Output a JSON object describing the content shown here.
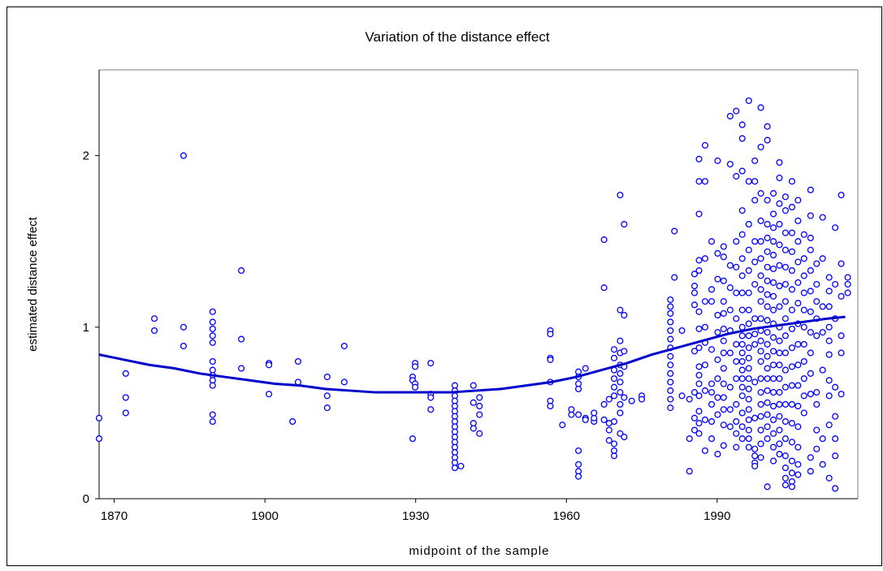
{
  "chart_data": {
    "type": "scatter",
    "title": "Variation of the distance effect",
    "x_label": "midpoint of the sample",
    "y_label": "estimated distance effect",
    "color": "#0000ff",
    "xlim": [
      1867,
      2018
    ],
    "xticks": [
      1870,
      1900,
      1930,
      1960,
      1990
    ],
    "ylim": [
      0,
      2.5
    ],
    "yticks": [
      0,
      1,
      2
    ],
    "x": [
      1867,
      1867,
      1872.3,
      1872.3,
      1872.3,
      1878,
      1878,
      1883.8,
      1883.8,
      1883.8,
      1889.6,
      1889.6,
      1889.6,
      1889.6,
      1889.6,
      1889.6,
      1889.6,
      1889.6,
      1889.6,
      1889.6,
      1889.6,
      1889.6,
      1895.3,
      1895.3,
      1895.3,
      1900.8,
      1900.8,
      1900.8,
      1905.5,
      1906.6,
      1906.6,
      1912.4,
      1912.4,
      1912.4,
      1915.8,
      1915.8,
      1929.4,
      1929.4,
      1929.4,
      1929.9,
      1929.9,
      1929.9,
      1929.9,
      1933,
      1933,
      1933,
      1933,
      1937.8,
      1937.8,
      1937.8,
      1937.8,
      1937.8,
      1937.8,
      1937.8,
      1937.8,
      1937.8,
      1937.8,
      1937.8,
      1937.8,
      1937.8,
      1937.8,
      1937.8,
      1937.8,
      1937.8,
      1939,
      1941.5,
      1941.5,
      1941.5,
      1941.5,
      1942.7,
      1942.7,
      1942.7,
      1942.7,
      1956.8,
      1956.8,
      1956.8,
      1956.8,
      1956.8,
      1956.8,
      1956.8,
      1959.2,
      1961,
      1961,
      1962.4,
      1962.4,
      1962.4,
      1962.4,
      1962.4,
      1962.4,
      1962.4,
      1962.4,
      1962.4,
      1963.8,
      1963.8,
      1963.8,
      1965.5,
      1965.5,
      1965.5,
      1967.5,
      1967.5,
      1967.5,
      1967.5,
      1968.5,
      1968.5,
      1968.5,
      1968.5,
      1969.5,
      1969.5,
      1969.5,
      1969.5,
      1969.5,
      1969.5,
      1969.5,
      1969.5,
      1969.5,
      1969.5,
      1970.7,
      1970.7,
      1970.7,
      1970.7,
      1970.7,
      1970.7,
      1970.7,
      1970.7,
      1970.7,
      1970.7,
      1970.7,
      1971.5,
      1971.5,
      1971.5,
      1971.5,
      1971.5,
      1971.5,
      1973,
      1975,
      1975,
      1980.7,
      1980.7,
      1980.7,
      1980.7,
      1980.7,
      1980.7,
      1980.7,
      1980.7,
      1980.7,
      1980.7,
      1980.7,
      1980.7,
      1980.7,
      1980.7,
      1981.5,
      1981.5,
      1983,
      1983,
      1984.5,
      1984.5,
      1984.5,
      1985.5,
      1985.5,
      1985.5,
      1985.5,
      1985.5,
      1985.5,
      1985.5,
      1985.5,
      1986.4,
      1986.4,
      1986.4,
      1986.4,
      1986.4,
      1986.4,
      1986.4,
      1986.4,
      1986.4,
      1986.4,
      1986.4,
      1986.4,
      1986.4,
      1986.4,
      1986.4,
      1987.6,
      1987.6,
      1987.6,
      1987.6,
      1987.6,
      1987.6,
      1987.6,
      1987.6,
      1987.6,
      1987.6,
      1988.9,
      1988.9,
      1988.9,
      1988.9,
      1988.9,
      1988.9,
      1988.9,
      1988.9,
      1988.9,
      1990.1,
      1990.1,
      1990.1,
      1990.1,
      1990.1,
      1990.1,
      1990.1,
      1990.1,
      1990.1,
      1990.1,
      1991.3,
      1991.3,
      1991.3,
      1991.3,
      1991.3,
      1991.3,
      1991.3,
      1991.3,
      1991.3,
      1991.3,
      1991.3,
      1991.3,
      1991.3,
      1991.3,
      1992.6,
      1992.6,
      1992.6,
      1992.6,
      1992.6,
      1992.6,
      1992.6,
      1992.6,
      1992.6,
      1992.6,
      1993.8,
      1993.8,
      1993.8,
      1993.8,
      1993.8,
      1993.8,
      1993.8,
      1993.8,
      1993.8,
      1993.8,
      1993.8,
      1993.8,
      1993.8,
      1995,
      1995,
      1995,
      1995,
      1995,
      1995,
      1995,
      1995,
      1995,
      1995,
      1995,
      1995,
      1995,
      1995,
      1995,
      1995,
      1995,
      1995,
      1995,
      1995,
      1995,
      1996.3,
      1996.3,
      1996.3,
      1996.3,
      1996.3,
      1996.3,
      1996.3,
      1996.3,
      1996.3,
      1996.3,
      1996.3,
      1996.3,
      1996.3,
      1996.3,
      1996.3,
      1996.3,
      1996.3,
      1996.3,
      1996.3,
      1996.3,
      1997.5,
      1997.5,
      1997.5,
      1997.5,
      1997.5,
      1997.5,
      1997.5,
      1997.5,
      1997.5,
      1997.5,
      1997.5,
      1997.5,
      1997.5,
      1997.5,
      1997.5,
      1998.7,
      1998.7,
      1998.7,
      1998.7,
      1998.7,
      1998.7,
      1998.7,
      1998.7,
      1998.7,
      1998.7,
      1998.7,
      1998.7,
      1998.7,
      1998.7,
      1998.7,
      1998.7,
      1998.7,
      1998.7,
      1998.7,
      1998.7,
      1998.7,
      2000,
      2000,
      2000,
      2000,
      2000,
      2000,
      2000,
      2000,
      2000,
      2000,
      2000,
      2000,
      2000,
      2000,
      2000,
      2000,
      2000,
      2000,
      2000,
      2000,
      2000,
      2000,
      2001.2,
      2001.2,
      2001.2,
      2001.2,
      2001.2,
      2001.2,
      2001.2,
      2001.2,
      2001.2,
      2001.2,
      2001.2,
      2001.2,
      2001.2,
      2001.2,
      2001.2,
      2001.2,
      2001.2,
      2001.2,
      2001.2,
      2001.2,
      2002.4,
      2002.4,
      2002.4,
      2002.4,
      2002.4,
      2002.4,
      2002.4,
      2002.4,
      2002.4,
      2002.4,
      2002.4,
      2002.4,
      2002.4,
      2002.4,
      2002.4,
      2002.4,
      2002.4,
      2002.4,
      2002.4,
      2003.6,
      2003.6,
      2003.6,
      2003.6,
      2003.6,
      2003.6,
      2003.6,
      2003.6,
      2003.6,
      2003.6,
      2003.6,
      2003.6,
      2003.6,
      2003.6,
      2003.6,
      2003.6,
      2003.6,
      2003.6,
      2003.6,
      2004.9,
      2004.9,
      2004.9,
      2004.9,
      2004.9,
      2004.9,
      2004.9,
      2004.9,
      2004.9,
      2004.9,
      2004.9,
      2004.9,
      2004.9,
      2004.9,
      2004.9,
      2004.9,
      2004.9,
      2004.9,
      2006.1,
      2006.1,
      2006.1,
      2006.1,
      2006.1,
      2006.1,
      2006.1,
      2006.1,
      2006.1,
      2006.1,
      2006.1,
      2006.1,
      2006.1,
      2006.1,
      2006.1,
      2007.3,
      2007.3,
      2007.3,
      2007.3,
      2007.3,
      2007.3,
      2007.3,
      2007.3,
      2007.3,
      2007.3,
      2007.3,
      2008.6,
      2008.6,
      2008.6,
      2008.6,
      2008.6,
      2008.6,
      2008.6,
      2008.6,
      2008.6,
      2008.6,
      2008.6,
      2008.6,
      2008.6,
      2009.8,
      2009.8,
      2009.8,
      2009.8,
      2009.8,
      2009.8,
      2009.8,
      2009.8,
      2009.8,
      2011,
      2011,
      2011,
      2011,
      2011,
      2011,
      2011,
      2012.3,
      2012.3,
      2012.3,
      2012.3,
      2012.3,
      2012.3,
      2012.3,
      2012.3,
      2012.3,
      2012.3,
      2013.5,
      2013.5,
      2013.5,
      2013.5,
      2013.5,
      2013.5,
      2013.5,
      2013.5,
      2014.7,
      2014.7,
      2014.7,
      2014.7,
      2014.7,
      2014.7,
      2016,
      2016,
      2016
    ],
    "values": [
      0.47,
      0.35,
      0.73,
      0.59,
      0.5,
      1.05,
      0.98,
      2.0,
      1.0,
      0.89,
      1.09,
      1.03,
      0.99,
      0.95,
      0.91,
      0.8,
      0.75,
      0.72,
      0.69,
      0.66,
      0.49,
      0.45,
      1.33,
      0.93,
      0.76,
      0.79,
      0.78,
      0.61,
      0.45,
      0.8,
      0.68,
      0.71,
      0.6,
      0.53,
      0.89,
      0.68,
      0.71,
      0.69,
      0.35,
      0.79,
      0.77,
      0.67,
      0.65,
      0.79,
      0.61,
      0.59,
      0.52,
      0.66,
      0.63,
      0.6,
      0.57,
      0.54,
      0.51,
      0.48,
      0.45,
      0.42,
      0.39,
      0.36,
      0.33,
      0.3,
      0.27,
      0.24,
      0.21,
      0.18,
      0.19,
      0.66,
      0.56,
      0.44,
      0.41,
      0.59,
      0.54,
      0.49,
      0.38,
      0.98,
      0.96,
      0.82,
      0.81,
      0.68,
      0.57,
      0.54,
      0.43,
      0.49,
      0.52,
      0.74,
      0.71,
      0.67,
      0.64,
      0.49,
      0.28,
      0.2,
      0.16,
      0.13,
      0.76,
      0.47,
      0.46,
      0.45,
      0.47,
      0.5,
      1.51,
      1.23,
      0.55,
      0.46,
      0.58,
      0.44,
      0.4,
      0.34,
      0.87,
      0.82,
      0.75,
      0.7,
      0.65,
      0.6,
      0.45,
      0.32,
      0.28,
      0.25,
      1.77,
      1.1,
      0.92,
      0.85,
      0.78,
      0.73,
      0.68,
      0.62,
      0.55,
      0.5,
      0.38,
      1.6,
      1.07,
      0.86,
      0.77,
      0.59,
      0.36,
      0.57,
      0.6,
      0.58,
      1.16,
      1.12,
      1.08,
      1.03,
      0.98,
      0.93,
      0.88,
      0.83,
      0.78,
      0.73,
      0.68,
      0.63,
      0.58,
      0.53,
      1.56,
      1.29,
      0.6,
      0.98,
      0.58,
      0.16,
      0.35,
      1.31,
      1.24,
      1.2,
      1.13,
      0.86,
      0.62,
      0.47,
      0.4,
      1.98,
      1.85,
      1.66,
      1.39,
      1.33,
      1.09,
      0.99,
      0.88,
      0.77,
      0.72,
      0.67,
      0.6,
      0.51,
      0.44,
      0.38,
      2.06,
      1.85,
      1.4,
      1.15,
      1.0,
      0.91,
      0.78,
      0.63,
      0.46,
      0.28,
      1.5,
      1.22,
      1.15,
      0.87,
      0.67,
      0.62,
      0.55,
      0.45,
      0.35,
      1.97,
      1.43,
      1.28,
      1.07,
      0.97,
      0.81,
      0.7,
      0.59,
      0.49,
      0.26,
      1.47,
      1.41,
      1.27,
      1.15,
      1.08,
      0.99,
      0.92,
      0.85,
      0.76,
      0.67,
      0.59,
      0.52,
      0.43,
      0.31,
      2.23,
      1.95,
      1.36,
      1.23,
      1.1,
      0.98,
      0.85,
      0.65,
      0.52,
      0.42,
      2.26,
      1.88,
      1.5,
      1.35,
      1.2,
      1.05,
      0.9,
      0.8,
      0.7,
      0.55,
      0.45,
      0.38,
      0.3,
      2.18,
      2.1,
      1.91,
      1.68,
      1.54,
      1.4,
      1.3,
      1.2,
      1.1,
      1.0,
      0.95,
      0.9,
      0.85,
      0.8,
      0.75,
      0.7,
      0.65,
      0.6,
      0.5,
      0.42,
      0.35,
      2.32,
      1.85,
      1.6,
      1.45,
      1.33,
      1.2,
      1.1,
      1.02,
      0.95,
      0.88,
      0.82,
      0.76,
      0.7,
      0.64,
      0.58,
      0.52,
      0.46,
      0.4,
      0.35,
      0.3,
      1.97,
      1.85,
      1.74,
      1.5,
      1.38,
      1.25,
      1.05,
      0.96,
      0.9,
      0.68,
      0.47,
      0.29,
      0.25,
      0.21,
      0.19,
      2.28,
      2.05,
      1.78,
      1.62,
      1.5,
      1.4,
      1.3,
      1.22,
      1.15,
      1.05,
      0.98,
      0.92,
      0.86,
      0.8,
      0.7,
      0.62,
      0.55,
      0.48,
      0.4,
      0.32,
      0.24,
      2.17,
      2.09,
      1.74,
      1.6,
      1.52,
      1.44,
      1.35,
      1.27,
      1.19,
      1.12,
      1.04,
      0.97,
      0.9,
      0.83,
      0.76,
      0.7,
      0.63,
      0.56,
      0.49,
      0.42,
      0.35,
      0.07,
      1.78,
      1.66,
      1.58,
      1.5,
      1.42,
      1.34,
      1.26,
      1.18,
      1.1,
      1.02,
      0.94,
      0.86,
      0.78,
      0.7,
      0.62,
      0.54,
      0.46,
      0.38,
      0.3,
      0.22,
      1.96,
      1.87,
      1.72,
      1.6,
      1.48,
      1.36,
      1.24,
      1.12,
      1.0,
      0.92,
      0.85,
      0.78,
      0.7,
      0.62,
      0.55,
      0.48,
      0.4,
      0.32,
      0.26,
      1.76,
      1.68,
      1.55,
      1.45,
      1.35,
      1.25,
      1.15,
      1.05,
      0.95,
      0.85,
      0.75,
      0.65,
      0.55,
      0.45,
      0.35,
      0.25,
      0.18,
      0.12,
      0.08,
      1.85,
      1.7,
      1.55,
      1.44,
      1.33,
      1.22,
      1.1,
      0.99,
      0.88,
      0.77,
      0.66,
      0.55,
      0.44,
      0.33,
      0.22,
      0.15,
      0.1,
      0.07,
      1.74,
      1.62,
      1.5,
      1.38,
      1.26,
      1.14,
      1.02,
      0.9,
      0.78,
      0.66,
      0.54,
      0.42,
      0.3,
      0.2,
      0.14,
      1.54,
      1.4,
      1.3,
      1.2,
      1.1,
      1.0,
      0.9,
      0.8,
      0.7,
      0.6,
      0.5,
      1.8,
      1.65,
      1.52,
      1.45,
      1.33,
      1.21,
      1.09,
      0.97,
      0.85,
      0.73,
      0.61,
      0.24,
      0.16,
      1.37,
      1.25,
      1.15,
      1.05,
      0.95,
      0.62,
      0.55,
      0.4,
      0.29,
      1.64,
      1.4,
      1.12,
      0.97,
      0.75,
      0.35,
      0.2,
      1.29,
      1.21,
      1.12,
      1.0,
      0.92,
      0.84,
      0.69,
      0.6,
      0.43,
      0.12,
      1.58,
      1.25,
      1.05,
      0.65,
      0.48,
      0.35,
      0.25,
      0.06,
      1.77,
      1.37,
      1.18,
      0.95,
      0.85,
      0.61,
      1.29,
      1.25,
      1.2
    ],
    "trend": {
      "type": "line",
      "color": "#0000cc",
      "x": [
        1867,
        1872,
        1877,
        1882,
        1887,
        1892,
        1897,
        1902,
        1907,
        1912,
        1917,
        1922,
        1927,
        1932,
        1937,
        1942,
        1947,
        1952,
        1957,
        1962,
        1967,
        1972,
        1977,
        1982,
        1987,
        1992,
        1997,
        2002,
        2007,
        2012,
        2015.5
      ],
      "values": [
        0.84,
        0.81,
        0.78,
        0.76,
        0.73,
        0.71,
        0.69,
        0.67,
        0.66,
        0.64,
        0.63,
        0.62,
        0.62,
        0.62,
        0.62,
        0.63,
        0.64,
        0.66,
        0.68,
        0.71,
        0.75,
        0.79,
        0.84,
        0.88,
        0.92,
        0.96,
        0.99,
        1.01,
        1.03,
        1.05,
        1.06
      ]
    }
  }
}
